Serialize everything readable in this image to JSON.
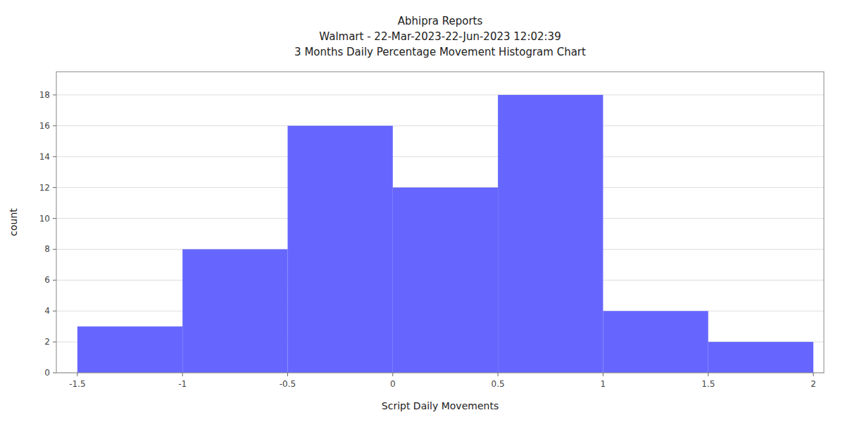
{
  "chart_data": {
    "type": "histogram",
    "title": "Abhipra Reports\nWalmart - 22-Mar-2023-22-Jun-2023 12:02:39\n3 Months Daily Percentage Movement Histogram Chart",
    "xlabel": "Script Daily Movements",
    "ylabel": "count",
    "bins": [
      -1.5,
      -1.0,
      -0.5,
      0.0,
      0.5,
      1.0,
      1.5,
      2.0
    ],
    "values": [
      3,
      8,
      16,
      12,
      18,
      4,
      2
    ],
    "color": "#6666ff",
    "xlim": [
      -1.6,
      2.05
    ],
    "ylim": [
      0,
      19.5
    ],
    "xticks": [
      -1.5,
      -1,
      -0.5,
      0,
      0.5,
      1,
      1.5,
      2
    ],
    "yticks": [
      0,
      2,
      4,
      6,
      8,
      10,
      12,
      14,
      16,
      18
    ],
    "grid": true
  }
}
